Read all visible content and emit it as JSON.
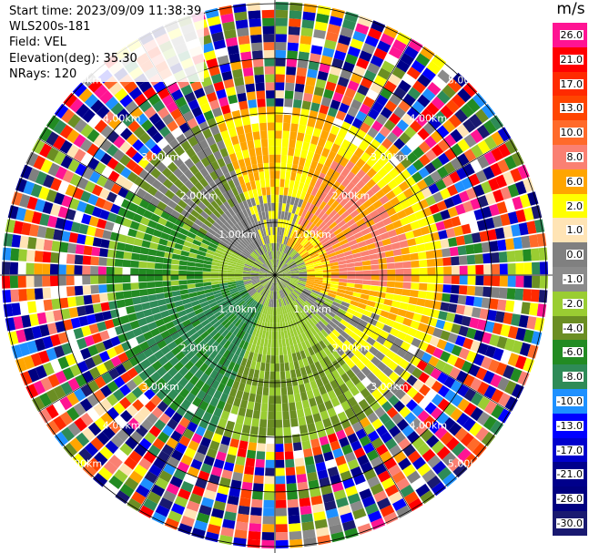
{
  "info": {
    "start_time": "Start time: 2023/09/09 11:38:39",
    "instrument": "WLS200s-181",
    "field": "Field: VEL",
    "elevation": "Elevation(deg): 35.30",
    "nrays": "NRays: 120"
  },
  "colorbar": {
    "unit": "m/s",
    "labels": [
      "26.0",
      "21.0",
      "17.0",
      "13.0",
      "10.0",
      "8.0",
      "6.0",
      "2.0",
      "1.0",
      "0.0",
      "-1.0",
      "-2.0",
      "-4.0",
      "-6.0",
      "-8.0",
      "-10.0",
      "-13.0",
      "-17.0",
      "-21.0",
      "-26.0",
      "-30.0"
    ],
    "colors": [
      "#ff1493",
      "#ff0000",
      "#ff2a00",
      "#ff4500",
      "#ff6a2a",
      "#fa8072",
      "#ffa500",
      "#ffff00",
      "#ffe4b5",
      "#808080",
      "#8b8b8b",
      "#9acd32",
      "#6b8e23",
      "#228b22",
      "#2e8b57",
      "#1e90ff",
      "#0000ff",
      "#0000cd",
      "#00008b",
      "#000080",
      "#191970"
    ]
  },
  "range_labels": [
    "1.00km",
    "2.00km",
    "3.00km",
    "4.00km",
    "5.00km"
  ]
}
